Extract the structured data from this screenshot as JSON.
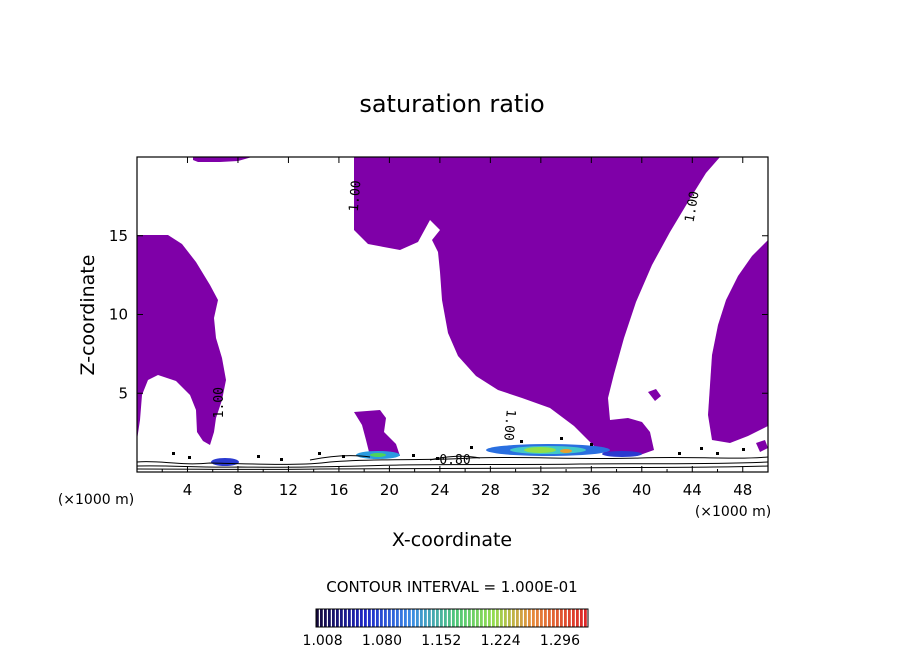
{
  "chart_data": {
    "type": "heatmap",
    "title": "saturation ratio",
    "xlabel": "X-coordinate",
    "ylabel": "Z-coordinate",
    "x_unit": "(×1000 m)",
    "xlim": [
      0,
      50
    ],
    "ylim": [
      0,
      20
    ],
    "x_ticks": [
      4,
      8,
      12,
      16,
      20,
      24,
      28,
      32,
      36,
      40,
      44,
      48
    ],
    "y_ticks": [
      5,
      10,
      15
    ],
    "contour_interval_text": "CONTOUR INTERVAL = 1.000E-01",
    "contour_labels": [
      {
        "text": "1.00",
        "x": 17.6,
        "z": 17.5,
        "rotate": -85
      },
      {
        "text": "1.00",
        "x": 44.3,
        "z": 16.8,
        "rotate": -80
      },
      {
        "text": "1.00",
        "x": 6.8,
        "z": 4.4,
        "rotate": -90
      },
      {
        "text": "1.00",
        "x": 29.2,
        "z": 3.0,
        "rotate": 95
      },
      {
        "text": "0.80",
        "x": 25.2,
        "z": 0.5,
        "rotate": 0
      }
    ],
    "colorbar_ticks": [
      "1.008",
      "1.080",
      "1.152",
      "1.224",
      "1.296"
    ],
    "colorbar_range": [
      1.0,
      1.33
    ],
    "fill_color": "#7f00a8",
    "supersaturation_fill": "> 1.00"
  }
}
